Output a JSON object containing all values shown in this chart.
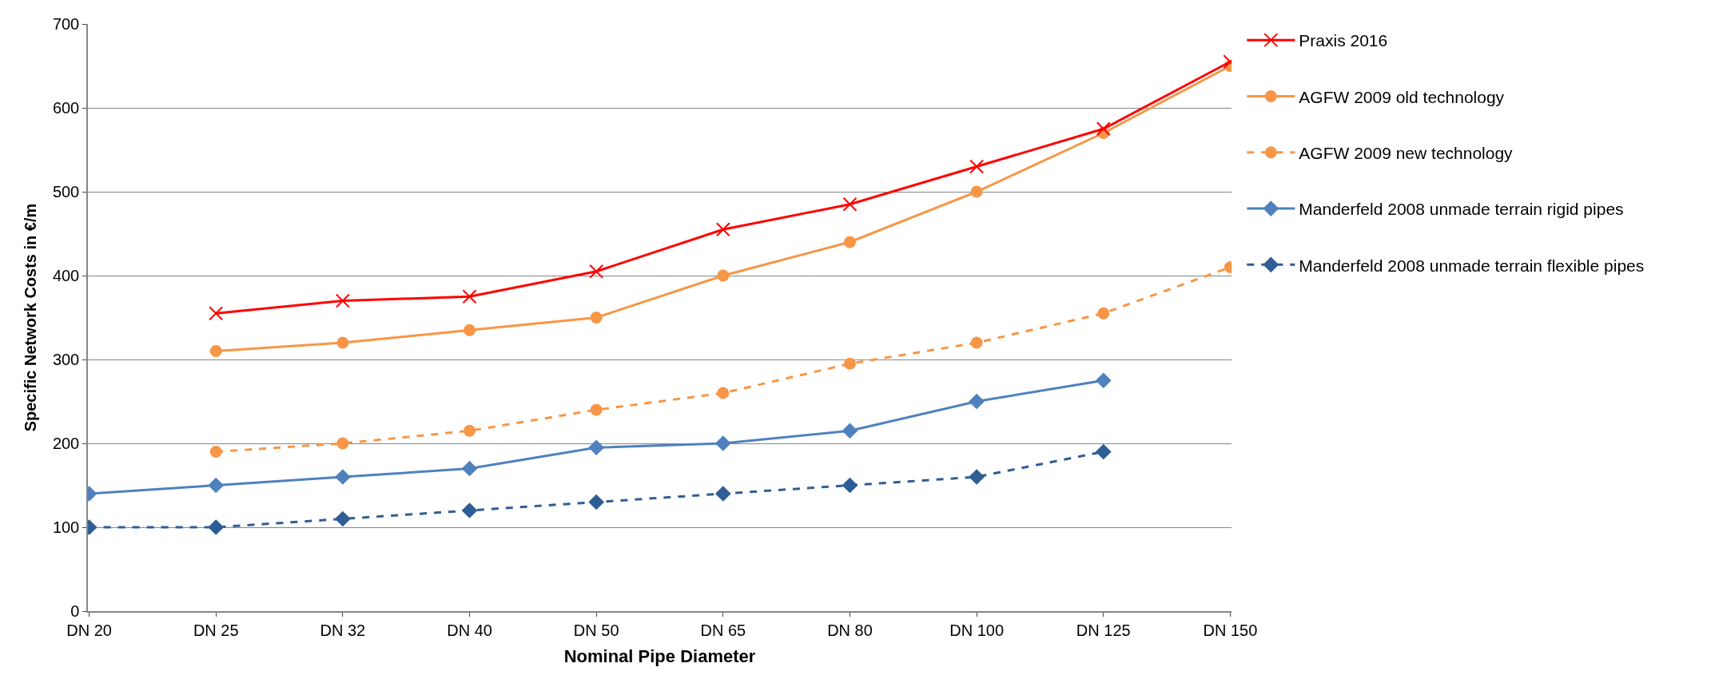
{
  "chart_data": {
    "type": "line",
    "xlabel": "Nominal Pipe Diameter",
    "ylabel": "Specific Network Costs in €/m",
    "categories": [
      "DN 20",
      "DN 25",
      "DN 32",
      "DN 40",
      "DN 50",
      "DN 65",
      "DN 80",
      "DN 100",
      "DN 125",
      "DN 150"
    ],
    "series": [
      {
        "name": "Praxis 2016",
        "color": "#ff0000",
        "marker": "cross",
        "line_style": "solid",
        "values": [
          null,
          355,
          370,
          375,
          405,
          455,
          485,
          530,
          575,
          655
        ]
      },
      {
        "name": "AGFW 2009 old technology",
        "color": "#f79646",
        "marker": "circle",
        "line_style": "solid",
        "values": [
          null,
          310,
          320,
          335,
          350,
          400,
          440,
          500,
          570,
          650
        ]
      },
      {
        "name": "AGFW 2009 new technology",
        "color": "#f79646",
        "marker": "circle",
        "line_style": "dashed",
        "values": [
          null,
          190,
          200,
          215,
          240,
          260,
          295,
          320,
          355,
          410
        ]
      },
      {
        "name": "Manderfeld 2008 unmade terrain rigid pipes",
        "color": "#4f81bd",
        "marker": "diamond",
        "line_style": "solid",
        "values": [
          140,
          150,
          160,
          170,
          195,
          200,
          215,
          250,
          275,
          null
        ]
      },
      {
        "name": "Manderfeld 2008 unmade terrain flexible pipes",
        "color": "#2f5e96",
        "marker": "diamond",
        "line_style": "dashed",
        "values": [
          100,
          100,
          110,
          120,
          130,
          140,
          150,
          160,
          190,
          null
        ]
      }
    ],
    "ylim": [
      0,
      700
    ],
    "yticks": [
      0,
      100,
      200,
      300,
      400,
      500,
      600,
      700
    ],
    "grid": "y",
    "legend": "right"
  }
}
